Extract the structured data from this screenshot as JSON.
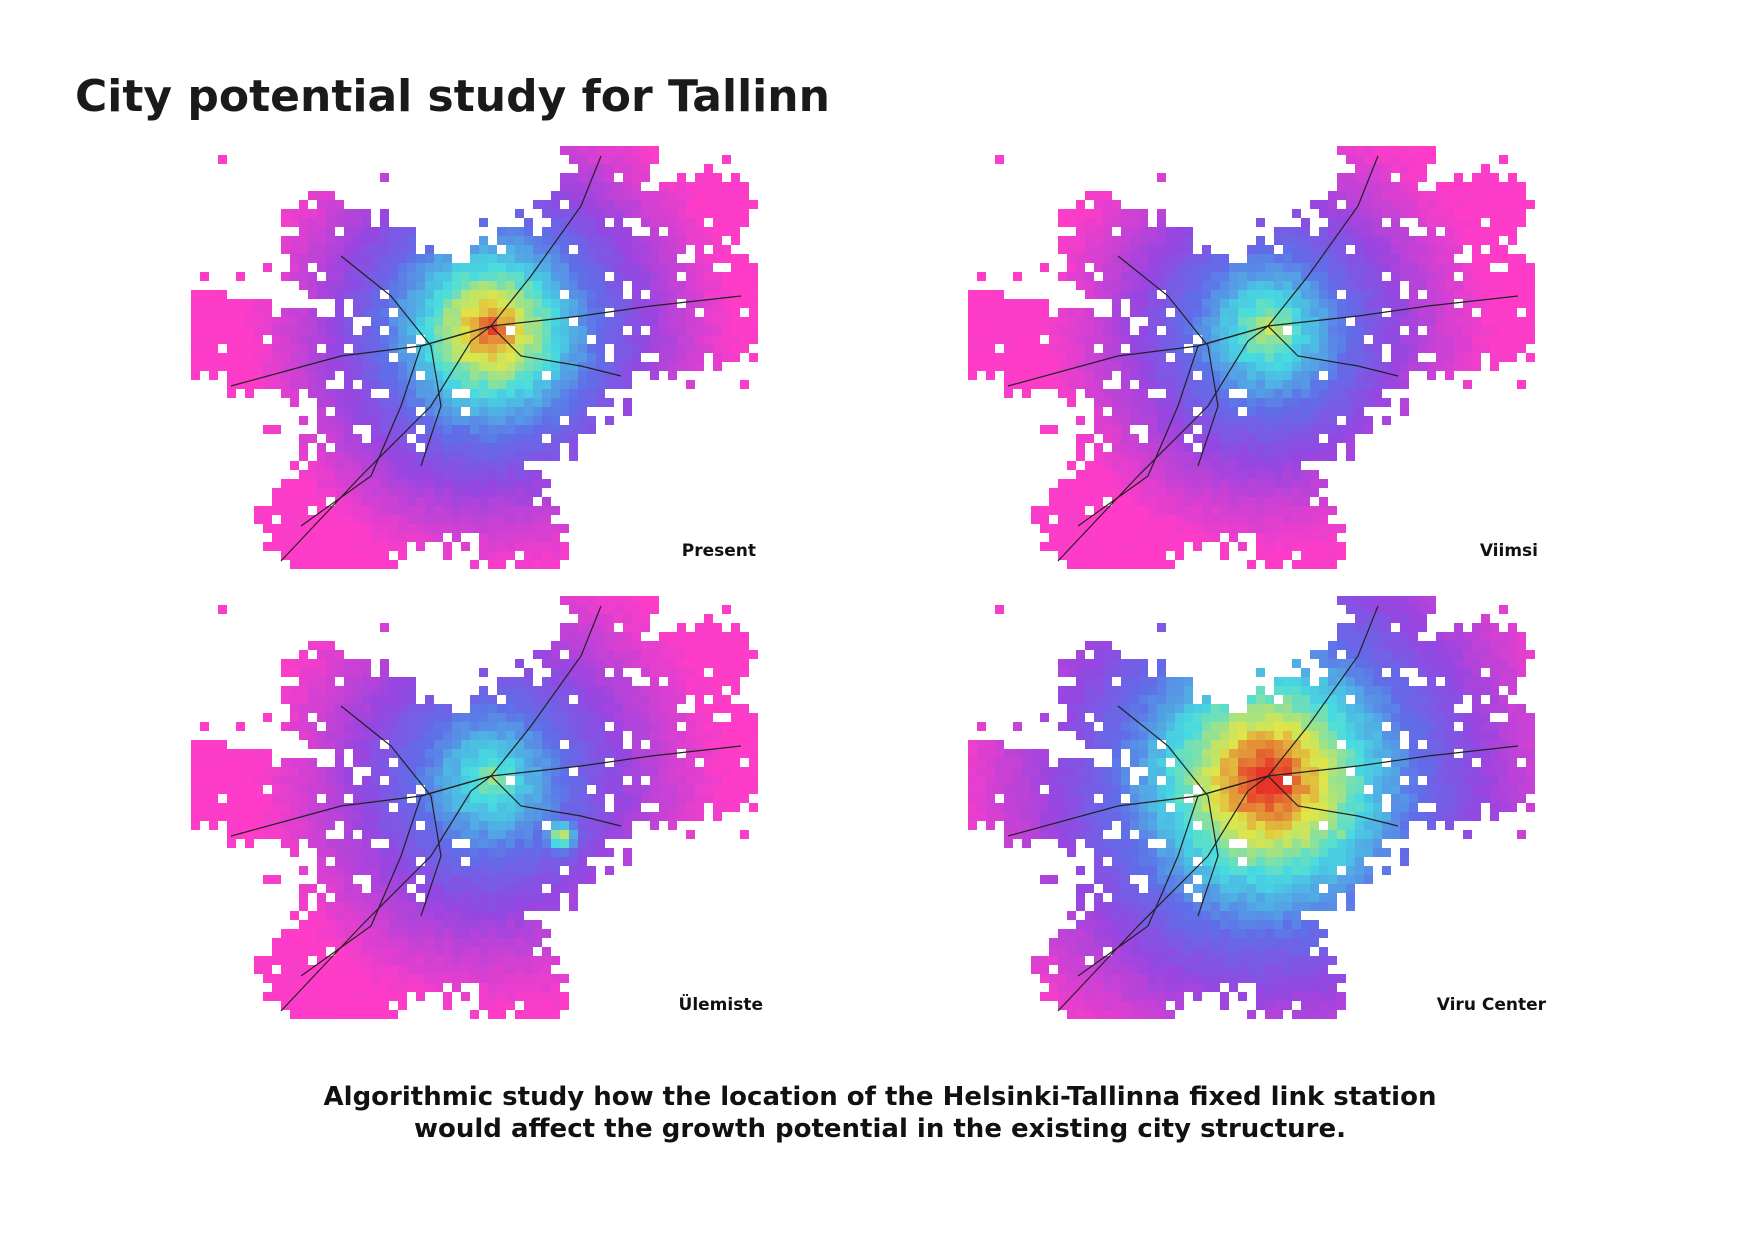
{
  "title": "City potential study for Tallinn",
  "maps": [
    {
      "label": "Present"
    },
    {
      "label": "Viimsi"
    },
    {
      "label": "Ülemiste"
    },
    {
      "label": "Viru Center"
    }
  ],
  "caption": {
    "lines": [
      "Algorithmic study how the location of the Helsinki-Tallinna fixed link station",
      "would affect the growth potential in the existing city structure."
    ]
  }
}
